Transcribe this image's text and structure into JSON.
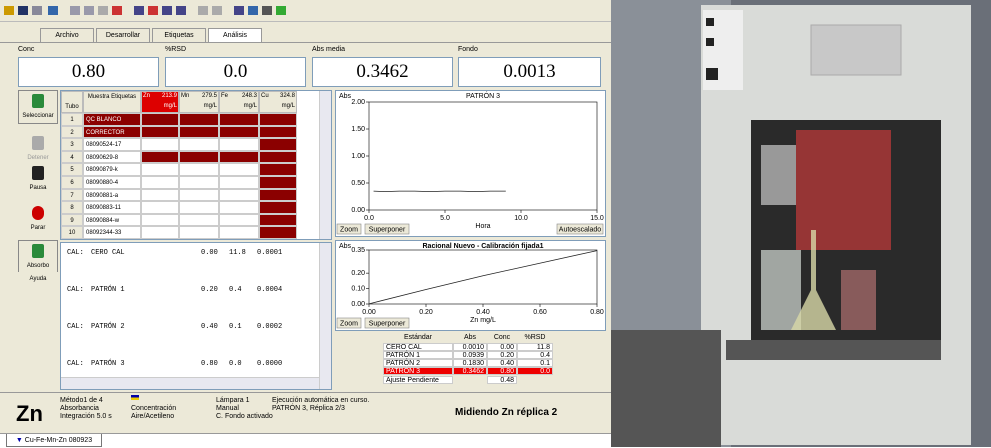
{
  "tabs": [
    "Archivo",
    "Desarrollar",
    "Etiquetas",
    "Análisis"
  ],
  "readouts": [
    {
      "label": "Conc",
      "value": "0.80"
    },
    {
      "label": "%RSD",
      "value": "0.0"
    },
    {
      "label": "Abs media",
      "value": "0.3462"
    },
    {
      "label": "Fondo",
      "value": "0.0013"
    }
  ],
  "buttons": [
    "Seleccionar",
    "Detener",
    "Pausa",
    "Parar",
    "Absorbo",
    "Ayuda"
  ],
  "sample_table": {
    "tube_header": "Tubo",
    "label_header": "Muestra Etiquetas",
    "elements": [
      {
        "symbol": "Zn",
        "wavelength": "213.9",
        "unit": "mg/L"
      },
      {
        "symbol": "Mn",
        "wavelength": "279.5",
        "unit": "mg/L"
      },
      {
        "symbol": "Fe",
        "wavelength": "248.3",
        "unit": "mg/L"
      },
      {
        "symbol": "Cu",
        "wavelength": "324.8",
        "unit": "mg/L"
      }
    ],
    "rows": [
      [
        "1",
        "QC BLANCO"
      ],
      [
        "2",
        "CORRECTOR"
      ],
      [
        "3",
        "08090524-17"
      ],
      [
        "4",
        "08090629-8"
      ],
      [
        "5",
        "08090879-k"
      ],
      [
        "6",
        "08090880-4"
      ],
      [
        "7",
        "08090881-a"
      ],
      [
        "8",
        "08090883-11"
      ],
      [
        "9",
        "08090884-w"
      ],
      [
        "10",
        "08092344-33"
      ]
    ]
  },
  "results": [
    [
      "CAL:",
      "CERO CAL",
      "0.00",
      "11.8",
      "0.0001"
    ],
    [
      "CAL:",
      "PATRÓN 1",
      "0.20",
      "0.4",
      "0.0004"
    ],
    [
      "CAL:",
      "PATRÓN 2",
      "0.40",
      "0.1",
      "0.0002"
    ],
    [
      "CAL:",
      "PATRÓN 3",
      "0.80",
      "0.0",
      "0.0000"
    ]
  ],
  "chart_data": [
    {
      "type": "line",
      "title": "PATRÓN 3",
      "ylabel": "Abs",
      "xlabel": "Hora",
      "color": "#222222",
      "x": [
        0.3,
        1,
        2,
        3,
        4,
        5,
        6,
        7,
        8,
        9
      ],
      "values": [
        0.35,
        0.34,
        0.35,
        0.35,
        0.34,
        0.35,
        0.35,
        0.34,
        0.35,
        0.35
      ],
      "xlim": [
        0,
        15
      ],
      "ylim": [
        0,
        2
      ],
      "xticks": [
        {
          "value": 0,
          "label": "0.0"
        },
        {
          "value": 5,
          "label": "5.0"
        },
        {
          "value": 10,
          "label": "10.0"
        },
        {
          "value": 15,
          "label": "15.0"
        }
      ],
      "yticks": [
        {
          "value": 0,
          "label": "0.00"
        },
        {
          "value": 0.5,
          "label": "0.50"
        },
        {
          "value": 1,
          "label": "1.00"
        },
        {
          "value": 1.5,
          "label": "1.50"
        },
        {
          "value": 2,
          "label": "2.00"
        }
      ],
      "buttons": [
        "Zoom",
        "Superponer",
        "Autoescalado"
      ]
    },
    {
      "type": "line",
      "title": "Racional Nuevo - Calibración fijada1",
      "ylabel": "Abs",
      "xlabel": "Zn mg/L",
      "color": "#222222",
      "x": [
        0,
        0.2,
        0.4,
        0.8
      ],
      "values": [
        0.001,
        0.0939,
        0.183,
        0.3462
      ],
      "xlim": [
        0,
        0.8
      ],
      "ylim": [
        0,
        0.35
      ],
      "xticks": [
        {
          "value": 0,
          "label": "0.00"
        },
        {
          "value": 0.2,
          "label": "0.20"
        },
        {
          "value": 0.4,
          "label": "0.40"
        },
        {
          "value": 0.6,
          "label": "0.60"
        },
        {
          "value": 0.8,
          "label": "0.80"
        }
      ],
      "yticks": [
        {
          "value": 0,
          "label": "0.00"
        },
        {
          "value": 0.1,
          "label": "0.10"
        },
        {
          "value": 0.2,
          "label": "0.20"
        },
        {
          "value": 0.35,
          "label": "0.35"
        }
      ],
      "buttons": [
        "Zoom",
        "Superponer"
      ]
    }
  ],
  "cal_table": {
    "headers": [
      "Estándar",
      "Abs",
      "Conc",
      "%RSD"
    ],
    "rows": [
      [
        "CERO CAL",
        "0.0010",
        "0.00",
        "11.8"
      ],
      [
        "PATRÓN 1",
        "0.0939",
        "0.20",
        "0.4"
      ],
      [
        "PATRÓN 2",
        "0.1830",
        "0.40",
        "0.1"
      ],
      [
        "PATRÓN 3",
        "0.3462",
        "0.80",
        "0.0"
      ]
    ],
    "slope_label": "Ajuste Pendiente",
    "slope": "0.48"
  },
  "status": {
    "element": "Zn",
    "method": [
      "Método1 de 4",
      "Absorbancia",
      "Integración 5.0 s"
    ],
    "mode": [
      "Concentración",
      "Aire/Acetileno"
    ],
    "lamp": [
      "Lámpara 1",
      "Manual",
      "C. Fondo activado"
    ],
    "run": [
      "Ejecución automática en curso.",
      "PATRÓN 3, Réplica 2/3"
    ],
    "message": "Midiendo Zn réplica 2"
  },
  "worksheet_tab": "Cu-Fe-Mn-Zn 080923"
}
